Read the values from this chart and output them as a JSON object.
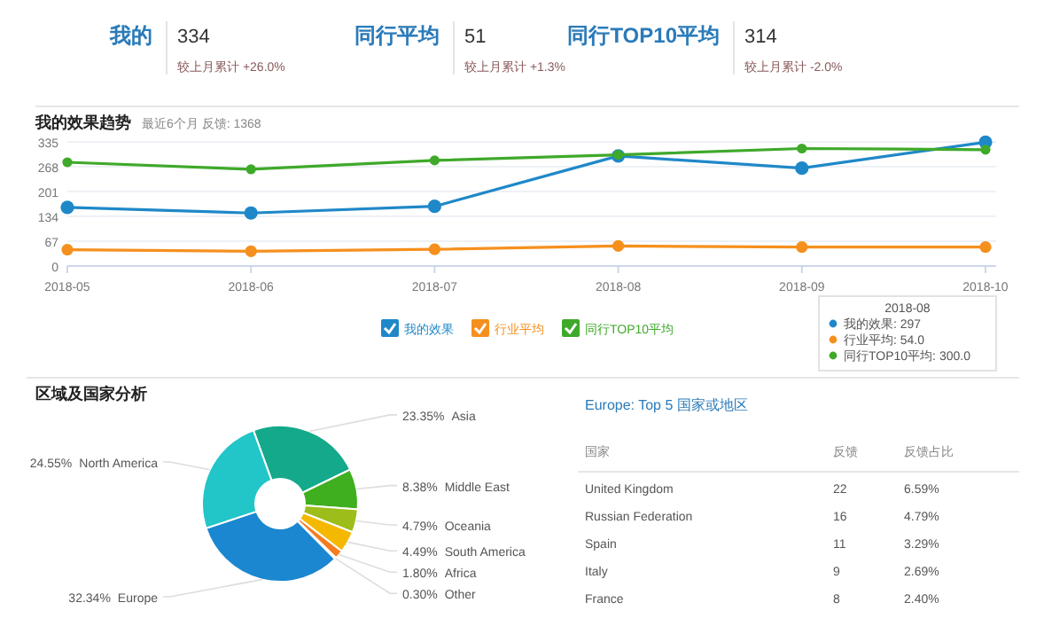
{
  "chart_data": [
    {
      "type": "other",
      "categories": [
        "我的",
        "同行平均",
        "同行TOP10平均"
      ],
      "values": [
        334,
        51,
        314
      ],
      "data_labels": true,
      "annotations": [
        "较上月累计 +26.0%",
        "较上月累计 +1.3%",
        "较上月累计 -2.0%"
      ]
    },
    {
      "type": "line",
      "title": "我的效果趋势",
      "subtitle": "最近6个月 反馈: 1368",
      "categories": [
        "2018-05",
        "2018-06",
        "2018-07",
        "2018-08",
        "2018-09",
        "2018-10"
      ],
      "series": [
        {
          "name": "我的效果",
          "color": "#1f88c8",
          "values": [
            158,
            143,
            161,
            297,
            264,
            334
          ]
        },
        {
          "name": "行业平均",
          "color": "#f5901e",
          "values": [
            44,
            40,
            45,
            54,
            51,
            51
          ]
        },
        {
          "name": "同行TOP10平均",
          "color": "#3fa92a",
          "values": [
            280,
            261,
            285,
            300,
            317,
            314
          ]
        }
      ],
      "ylim": [
        0,
        335
      ],
      "yticks": [
        0,
        67,
        134,
        201,
        268,
        335
      ],
      "grid": "y",
      "legend": "bottom",
      "marker": "circle",
      "annotations": [
        "2018-08",
        "我的效果: 297",
        "行业平均: 54.0",
        "同行TOP10平均: 300.0"
      ]
    },
    {
      "type": "donut",
      "title": "区域及国家分析",
      "categories": [
        "Asia",
        "Middle East",
        "Oceania",
        "South America",
        "Africa",
        "Other",
        "Europe",
        "North America"
      ],
      "values": [
        23.35,
        8.38,
        4.79,
        4.49,
        1.8,
        0.3,
        32.34,
        24.55
      ],
      "colors": [
        "#14a98a",
        "#3fae1f",
        "#9cbd1a",
        "#f5b800",
        "#f57c1f",
        "#e84a2a",
        "#1a87d0",
        "#22c5c8"
      ],
      "value_labels": [
        "23.35%",
        "8.38%",
        "4.79%",
        "4.49%",
        "1.80%",
        "0.30%",
        "32.34%",
        "24.55%"
      ]
    },
    {
      "type": "other",
      "title": "Europe: Top 5 国家或地区",
      "categories": [
        "United Kingdom",
        "Russian Federation",
        "Spain",
        "Italy",
        "France"
      ],
      "series": [
        {
          "name": "反馈",
          "values": [
            22,
            16,
            11,
            9,
            8
          ]
        },
        {
          "name": "反馈占比",
          "values": [
            6.59,
            4.79,
            3.29,
            2.69,
            2.4
          ],
          "value_labels": [
            "6.59%",
            "4.79%",
            "3.29%",
            "2.69%",
            "2.40%"
          ]
        }
      ],
      "data_labels": true,
      "annotations": [
        "国家"
      ]
    }
  ]
}
